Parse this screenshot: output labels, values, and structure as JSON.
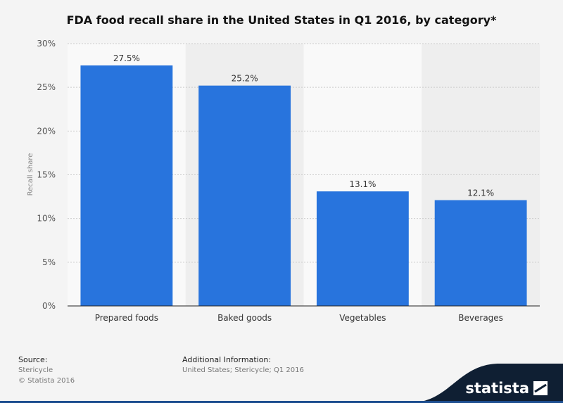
{
  "colors": {
    "bar": "#2874dd",
    "band": "#eeeeee",
    "grid": "#cccccc",
    "axis": "#222222",
    "brand_dark": "#0f1f33"
  },
  "chart_data": {
    "type": "bar",
    "title": "FDA food recall share in the United States in Q1 2016, by category*",
    "xlabel": "",
    "ylabel": "Recall share",
    "ylim": [
      0,
      30
    ],
    "yticks": [
      0,
      5,
      10,
      15,
      20,
      25,
      30
    ],
    "ytick_labels": [
      "0%",
      "5%",
      "10%",
      "15%",
      "20%",
      "25%",
      "30%"
    ],
    "categories": [
      "Prepared foods",
      "Baked goods",
      "Vegetables",
      "Beverages"
    ],
    "values": [
      27.5,
      25.2,
      13.1,
      12.1
    ],
    "value_labels": [
      "27.5%",
      "25.2%",
      "13.1%",
      "12.1%"
    ],
    "grid": true
  },
  "footer": {
    "source_heading": "Source:",
    "source_lines": [
      "Stericycle",
      "© Statista 2016"
    ],
    "additional_heading": "Additional Information:",
    "additional_text": "United States; Stericycle; Q1 2016"
  },
  "brand": {
    "name": "statista",
    "icon": "statista-logo-icon"
  }
}
